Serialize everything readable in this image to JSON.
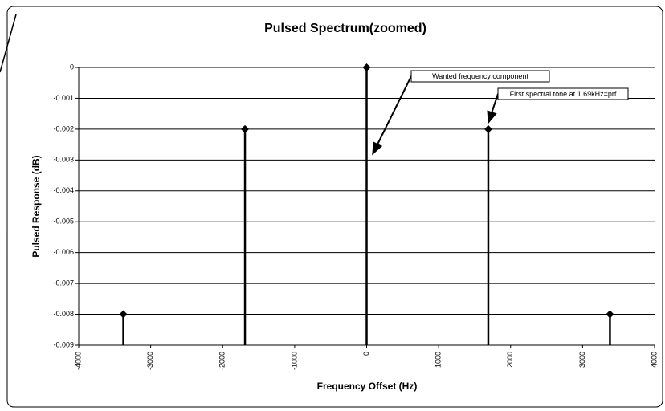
{
  "chart_data": {
    "type": "stem",
    "title": "Pulsed Spectrum(zoomed)",
    "x_label": "Frequency Offset (Hz)",
    "y_label": "Pulsed Response (dB)",
    "x": [
      -3380,
      -1690,
      0,
      1690,
      3380
    ],
    "values": [
      -0.008,
      -0.002,
      0,
      -0.002,
      -0.008
    ],
    "color": "#000000",
    "xlim": [
      -4000,
      4000
    ],
    "xticks": [
      -4000,
      -3000,
      -2000,
      -1000,
      0,
      1000,
      2000,
      3000,
      4000
    ],
    "ylim": [
      -0.009,
      0
    ],
    "yticks": [
      0,
      -0.001,
      -0.002,
      -0.003,
      -0.004,
      -0.005,
      -0.006,
      -0.007,
      -0.008,
      -0.009
    ],
    "grid": true,
    "annotations": [
      {
        "text": "Wanted frequency component"
      },
      {
        "text": "First spectral tone at 1.69kHz=prf"
      }
    ]
  }
}
